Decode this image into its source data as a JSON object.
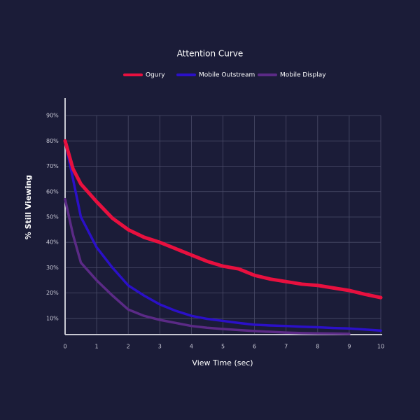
{
  "chart_data": {
    "type": "line",
    "title": "Attention Curve",
    "x_label": "View Time (sec)",
    "y_label": "% Still Viewing",
    "x": [
      0,
      0.25,
      0.5,
      1,
      1.5,
      2,
      2.5,
      3,
      3.5,
      4,
      4.5,
      5,
      5.5,
      6,
      6.5,
      7,
      7.5,
      8,
      8.5,
      9,
      9.5,
      10
    ],
    "series": [
      {
        "name": "Ogury",
        "color": "#e8103f",
        "width": 5,
        "values": [
          80,
          69,
          63,
          56,
          49.5,
          45,
          42,
          40,
          37.5,
          35,
          32.5,
          30.6,
          29.5,
          27,
          25.5,
          24.5,
          23.5,
          23,
          22,
          21,
          19.5,
          18.2
        ]
      },
      {
        "name": "Mobile Outstream",
        "color": "#2b10c8",
        "width": 3.5,
        "values": [
          80,
          65,
          50,
          38,
          30,
          23,
          19,
          15.5,
          13,
          11,
          9.8,
          9,
          8.2,
          7.5,
          7.2,
          7,
          6.7,
          6.5,
          6.2,
          6,
          5.6,
          5.2
        ]
      },
      {
        "name": "Mobile Display",
        "color": "#5b2a86",
        "width": 3.5,
        "values": [
          57,
          43,
          32,
          25,
          19,
          13.5,
          11,
          9.4,
          8.2,
          7,
          6.3,
          5.8,
          5.4,
          5,
          4.7,
          4.4,
          4.2,
          4.1,
          4,
          3.9,
          null,
          null
        ]
      }
    ],
    "xlim": [
      0,
      10
    ],
    "xticks": [
      0,
      1,
      2,
      3,
      4,
      5,
      6,
      7,
      8,
      9,
      10
    ],
    "ylim": [
      3.6,
      95
    ],
    "yticks": [
      {
        "value": 10,
        "label": "10%"
      },
      {
        "value": 20,
        "label": "20%"
      },
      {
        "value": 30,
        "label": "30%"
      },
      {
        "value": 40,
        "label": "40%"
      },
      {
        "value": 50,
        "label": "50%"
      },
      {
        "value": 60,
        "label": "60%"
      },
      {
        "value": 70,
        "label": "70%"
      },
      {
        "value": 80,
        "label": "80%"
      },
      {
        "value": 90,
        "label": "90%"
      }
    ],
    "grid": true
  }
}
